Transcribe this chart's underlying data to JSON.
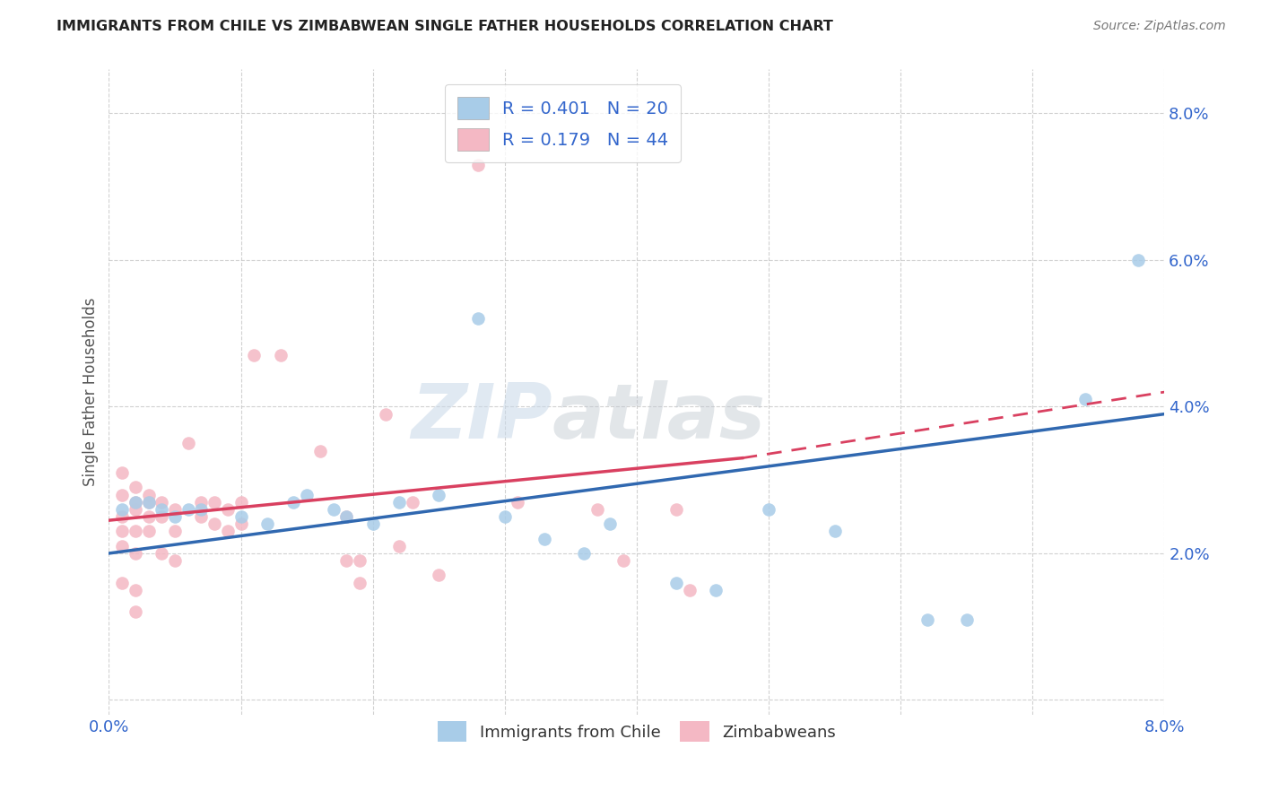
{
  "title": "IMMIGRANTS FROM CHILE VS ZIMBABWEAN SINGLE FATHER HOUSEHOLDS CORRELATION CHART",
  "source": "Source: ZipAtlas.com",
  "ylabel": "Single Father Households",
  "xlim": [
    0.0,
    0.08
  ],
  "ylim": [
    -0.002,
    0.086
  ],
  "yticks": [
    0.0,
    0.02,
    0.04,
    0.06,
    0.08
  ],
  "ytick_labels": [
    "",
    "2.0%",
    "4.0%",
    "6.0%",
    "8.0%"
  ],
  "xticks": [
    0.0,
    0.01,
    0.02,
    0.03,
    0.04,
    0.05,
    0.06,
    0.07,
    0.08
  ],
  "xtick_labels": [
    "0.0%",
    "",
    "",
    "",
    "",
    "",
    "",
    "",
    "8.0%"
  ],
  "color_blue": "#a8cce8",
  "color_pink": "#f4b8c4",
  "line_blue": "#3068b0",
  "line_pink": "#d94060",
  "legend_text_color": "#3366cc",
  "watermark_zip": "ZIP",
  "watermark_atlas": "atlas",
  "blue_points": [
    [
      0.001,
      0.026
    ],
    [
      0.002,
      0.027
    ],
    [
      0.003,
      0.027
    ],
    [
      0.004,
      0.026
    ],
    [
      0.005,
      0.025
    ],
    [
      0.006,
      0.026
    ],
    [
      0.007,
      0.026
    ],
    [
      0.01,
      0.025
    ],
    [
      0.012,
      0.024
    ],
    [
      0.014,
      0.027
    ],
    [
      0.015,
      0.028
    ],
    [
      0.017,
      0.026
    ],
    [
      0.018,
      0.025
    ],
    [
      0.02,
      0.024
    ],
    [
      0.022,
      0.027
    ],
    [
      0.025,
      0.028
    ],
    [
      0.03,
      0.025
    ],
    [
      0.033,
      0.022
    ],
    [
      0.036,
      0.02
    ],
    [
      0.028,
      0.052
    ],
    [
      0.038,
      0.024
    ],
    [
      0.043,
      0.016
    ],
    [
      0.046,
      0.015
    ],
    [
      0.05,
      0.026
    ],
    [
      0.055,
      0.023
    ],
    [
      0.062,
      0.011
    ],
    [
      0.065,
      0.011
    ],
    [
      0.074,
      0.041
    ],
    [
      0.078,
      0.06
    ]
  ],
  "pink_points": [
    [
      0.001,
      0.031
    ],
    [
      0.001,
      0.028
    ],
    [
      0.001,
      0.025
    ],
    [
      0.001,
      0.023
    ],
    [
      0.001,
      0.021
    ],
    [
      0.001,
      0.016
    ],
    [
      0.002,
      0.029
    ],
    [
      0.002,
      0.027
    ],
    [
      0.002,
      0.026
    ],
    [
      0.002,
      0.023
    ],
    [
      0.002,
      0.02
    ],
    [
      0.002,
      0.015
    ],
    [
      0.002,
      0.012
    ],
    [
      0.003,
      0.028
    ],
    [
      0.003,
      0.027
    ],
    [
      0.003,
      0.025
    ],
    [
      0.003,
      0.023
    ],
    [
      0.004,
      0.027
    ],
    [
      0.004,
      0.025
    ],
    [
      0.004,
      0.02
    ],
    [
      0.005,
      0.026
    ],
    [
      0.005,
      0.023
    ],
    [
      0.005,
      0.019
    ],
    [
      0.006,
      0.035
    ],
    [
      0.007,
      0.027
    ],
    [
      0.007,
      0.025
    ],
    [
      0.008,
      0.027
    ],
    [
      0.008,
      0.024
    ],
    [
      0.009,
      0.026
    ],
    [
      0.009,
      0.023
    ],
    [
      0.01,
      0.027
    ],
    [
      0.01,
      0.024
    ],
    [
      0.011,
      0.047
    ],
    [
      0.013,
      0.047
    ],
    [
      0.016,
      0.034
    ],
    [
      0.018,
      0.025
    ],
    [
      0.018,
      0.019
    ],
    [
      0.019,
      0.019
    ],
    [
      0.019,
      0.016
    ],
    [
      0.021,
      0.039
    ],
    [
      0.022,
      0.021
    ],
    [
      0.023,
      0.027
    ],
    [
      0.025,
      0.017
    ],
    [
      0.028,
      0.073
    ],
    [
      0.031,
      0.027
    ],
    [
      0.037,
      0.026
    ],
    [
      0.039,
      0.019
    ],
    [
      0.043,
      0.026
    ],
    [
      0.044,
      0.015
    ]
  ],
  "blue_line_solid": [
    [
      0.0,
      0.02
    ],
    [
      0.08,
      0.039
    ]
  ],
  "pink_line_solid": [
    [
      0.0,
      0.0245
    ],
    [
      0.048,
      0.033
    ]
  ],
  "pink_line_dashed": [
    [
      0.048,
      0.033
    ],
    [
      0.08,
      0.042
    ]
  ]
}
